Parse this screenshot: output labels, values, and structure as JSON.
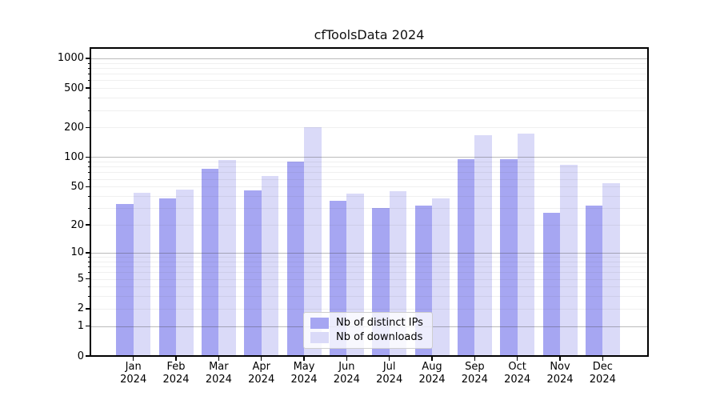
{
  "chart_data": {
    "type": "bar",
    "title": "cfToolsData 2024",
    "months": [
      "Jan",
      "Feb",
      "Mar",
      "Apr",
      "May",
      "Jun",
      "Jul",
      "Aug",
      "Sep",
      "Oct",
      "Nov",
      "Dec"
    ],
    "year": "2024",
    "series": [
      {
        "name": "Nb of distinct IPs",
        "color": "#a6a6f2",
        "values": [
          33,
          38,
          76,
          46,
          90,
          36,
          30,
          32,
          96,
          95,
          27,
          32
        ]
      },
      {
        "name": "Nb of downloads",
        "color": "#dadaf8",
        "values": [
          43,
          47,
          94,
          64,
          200,
          42,
          45,
          38,
          168,
          172,
          84,
          54
        ]
      }
    ],
    "yscale": "log(value+1)",
    "y_tick_labels": [
      "0",
      "1",
      "2",
      "5",
      "10",
      "20",
      "50",
      "100",
      "200",
      "500",
      "1000"
    ],
    "ylim": [
      0,
      1270
    ],
    "grid": true,
    "legend_position": "lower-center-inside"
  }
}
